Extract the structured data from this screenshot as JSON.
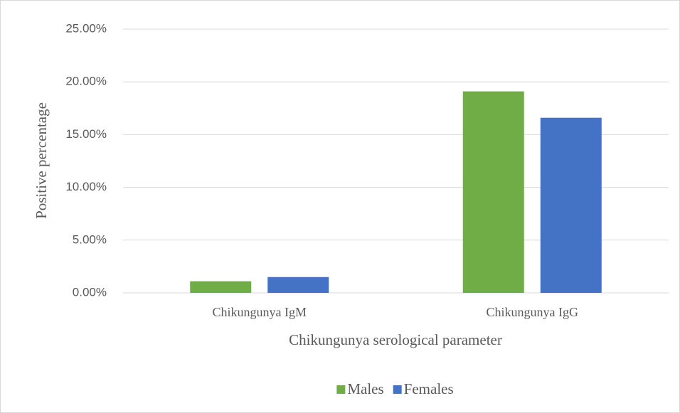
{
  "chart_data": {
    "type": "bar",
    "xlabel": "Chikungunya serological parameter",
    "ylabel": "Positive percentage",
    "categories": [
      "Chikungunya IgM",
      "Chikungunya IgG"
    ],
    "series": [
      {
        "name": "Males",
        "color": "#70ad47",
        "values": [
          1.1,
          19.1
        ]
      },
      {
        "name": "Females",
        "color": "#4472c4",
        "values": [
          1.5,
          16.6
        ]
      }
    ],
    "ylim": [
      0,
      25
    ],
    "yticks": [
      {
        "value": 0,
        "label": "0.00%"
      },
      {
        "value": 5,
        "label": "5.00%"
      },
      {
        "value": 10,
        "label": "10.00%"
      },
      {
        "value": 15,
        "label": "15.00%"
      },
      {
        "value": 20,
        "label": "20.00%"
      },
      {
        "value": 25,
        "label": "25.00%"
      }
    ],
    "grid": true,
    "legend": "bottom"
  }
}
